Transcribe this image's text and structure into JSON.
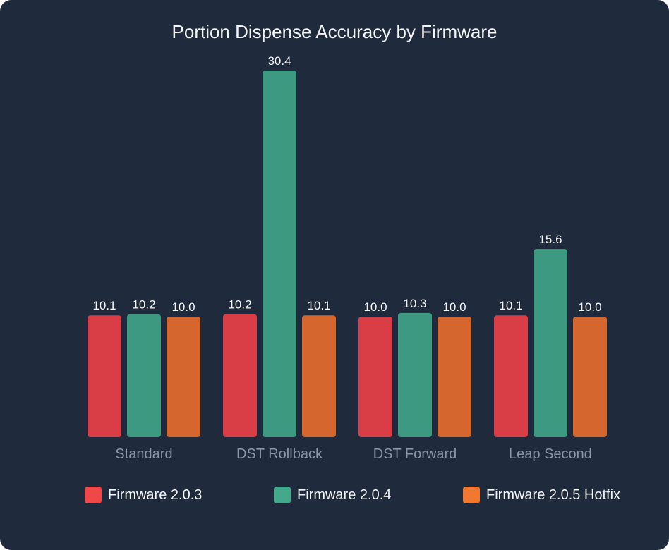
{
  "chart_data": {
    "type": "bar",
    "title": "Portion Dispense Accuracy by Firmware",
    "categories": [
      "Standard",
      "DST Rollback",
      "DST Forward",
      "Leap Second"
    ],
    "series": [
      {
        "name": "Firmware 2.0.3",
        "color": "#f04848",
        "values": [
          10.1,
          10.2,
          10.0,
          10.1
        ]
      },
      {
        "name": "Firmware 2.0.4",
        "color": "#44a88a",
        "values": [
          10.2,
          30.4,
          10.3,
          15.6
        ]
      },
      {
        "name": "Firmware 2.0.5 Hotfix",
        "color": "#f07830",
        "values": [
          10.0,
          10.1,
          10.0,
          10.0
        ]
      }
    ],
    "ylim": [
      0,
      30.4
    ],
    "grid": false,
    "legend": "bottom",
    "data_labels": true
  }
}
